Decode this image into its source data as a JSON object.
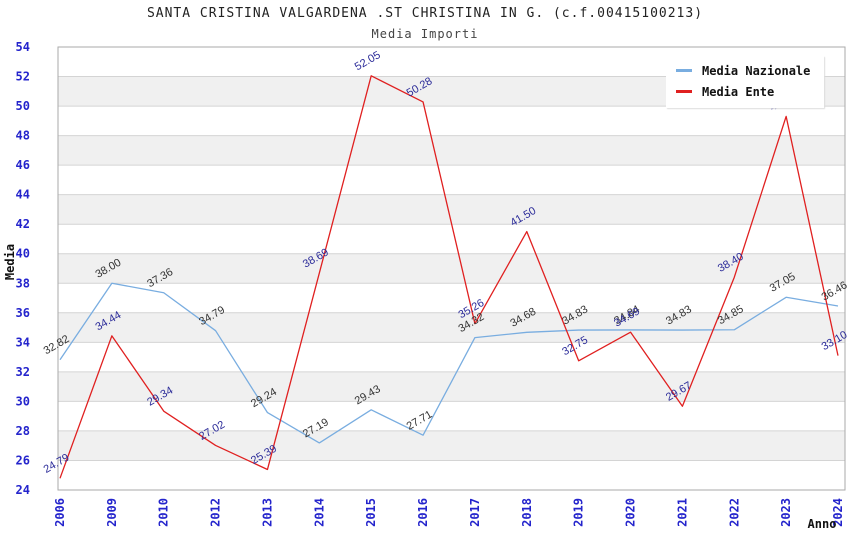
{
  "title": "SANTA CRISTINA VALGARDENA .ST CHRISTINA IN G. (c.f.00415100213)",
  "subtitle": "Media Importi",
  "legend": {
    "items": [
      {
        "label": "Media Nazionale",
        "color": "#79ADE0"
      },
      {
        "label": "Media Ente",
        "color": "#E02020"
      }
    ],
    "position": "top-right"
  },
  "chart_data": {
    "type": "line",
    "title": "Media Importi",
    "xlabel": "Anno",
    "ylabel": "Media",
    "categories": [
      "2006",
      "2009",
      "2010",
      "2012",
      "2013",
      "2014",
      "2015",
      "2016",
      "2017",
      "2018",
      "2019",
      "2020",
      "2021",
      "2022",
      "2023",
      "2024"
    ],
    "series": [
      {
        "name": "Media Nazionale",
        "color": "#79ADE0",
        "label_color": "#333333",
        "values": [
          32.82,
          38.0,
          37.36,
          34.79,
          29.24,
          27.19,
          29.43,
          27.71,
          34.32,
          34.68,
          34.83,
          34.84,
          34.83,
          34.85,
          37.05,
          36.46
        ]
      },
      {
        "name": "Media Ente",
        "color": "#E02020",
        "label_color": "#2B2B99",
        "values": [
          24.79,
          34.44,
          29.34,
          27.02,
          25.39,
          38.69,
          52.05,
          50.28,
          35.26,
          41.5,
          32.75,
          34.69,
          29.67,
          38.4,
          49.3,
          33.1
        ]
      }
    ],
    "ylim": [
      24,
      54
    ],
    "y_ticks": [
      54,
      52,
      50,
      48,
      46,
      44,
      42,
      40,
      38,
      36,
      34,
      32,
      30,
      28,
      26,
      24
    ],
    "ytick_step": 2,
    "grid": "alternating-bands",
    "legend_position": "top-right",
    "colors": {
      "tick_label": "#2424CC",
      "band": "#F0F0F0",
      "gridline": "#D4D4D4",
      "plot_border": "#AAAAAA",
      "axis_title": "#111111"
    }
  }
}
